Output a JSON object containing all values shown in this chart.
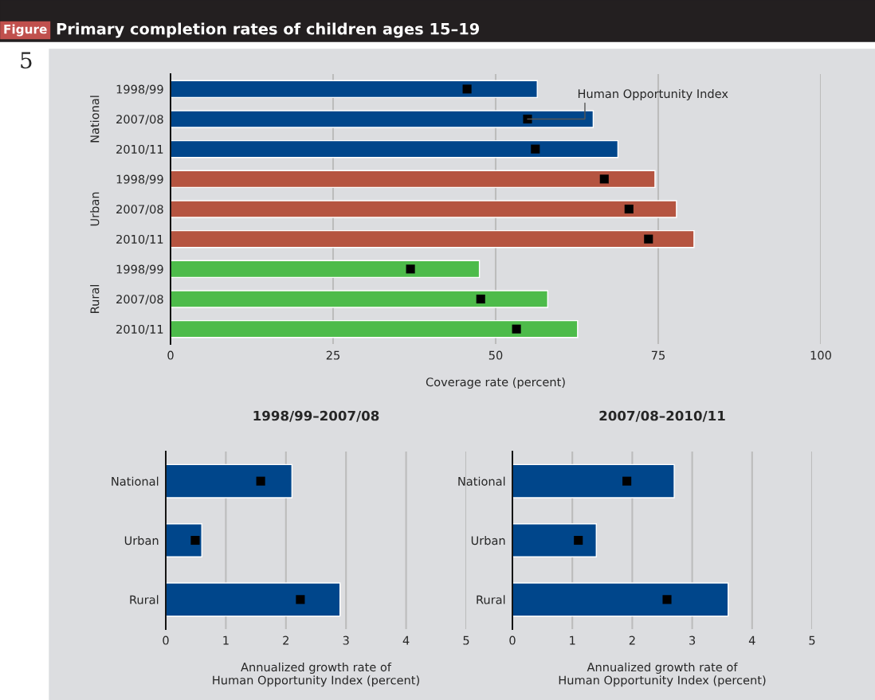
{
  "chart_data": [
    {
      "type": "bar",
      "orientation": "horizontal",
      "title": "Primary completion rates of children ages 15–19",
      "xlabel": "Coverage rate (percent)",
      "categories": [
        "1998/99",
        "2007/08",
        "2010/11",
        "1998/99",
        "2007/08",
        "2010/11",
        "1998/99",
        "2007/08",
        "2010/11"
      ],
      "series": [
        {
          "colors": [
            "#00468b",
            "#00468b",
            "#00468b",
            "#b55440",
            "#b55440",
            "#b55440",
            "#4dbb4a",
            "#4dbb4a",
            "#4dbb4a"
          ],
          "values": [
            56.4,
            65.0,
            68.8,
            74.5,
            77.8,
            80.5,
            47.5,
            58.0,
            62.6
          ]
        },
        {
          "type": "scatter",
          "name": "Human Opportunity Index",
          "marker": "square",
          "color": "#000000",
          "values": [
            45.6,
            54.9,
            56.1,
            66.7,
            70.5,
            73.5,
            36.9,
            47.7,
            53.2
          ]
        }
      ],
      "xlim": [
        0,
        100
      ],
      "xticks": [
        0,
        25,
        50,
        75,
        100
      ],
      "grid": "x",
      "annotations": [
        "Figure",
        "5",
        "National",
        "Urban",
        "Rural"
      ]
    },
    {
      "type": "bar",
      "orientation": "horizontal",
      "title": "1998/99–2007/08",
      "xlabel": "Annualized growth rate of\nHuman Opportunity Index (percent)",
      "categories": [
        "National",
        "Urban",
        "Rural"
      ],
      "series": [
        {
          "color": "#00468b",
          "values": [
            2.1,
            0.6,
            2.9
          ]
        },
        {
          "type": "scatter",
          "marker": "square",
          "color": "#000000",
          "values": [
            1.58,
            0.49,
            2.24
          ]
        }
      ],
      "xlim": [
        0,
        5
      ],
      "xticks": [
        0,
        1,
        2,
        3,
        4,
        5
      ],
      "grid": "x"
    },
    {
      "type": "bar",
      "orientation": "horizontal",
      "title": "2007/08–2010/11",
      "xlabel": "Annualized growth rate of\nHuman Opportunity Index (percent)",
      "categories": [
        "National",
        "Urban",
        "Rural"
      ],
      "series": [
        {
          "color": "#00468b",
          "values": [
            2.7,
            1.4,
            3.6
          ]
        },
        {
          "type": "scatter",
          "marker": "square",
          "color": "#000000",
          "values": [
            1.91,
            1.1,
            2.58
          ]
        }
      ],
      "xlim": [
        0,
        5
      ],
      "xticks": [
        0,
        1,
        2,
        3,
        4,
        5
      ],
      "grid": "x"
    }
  ]
}
